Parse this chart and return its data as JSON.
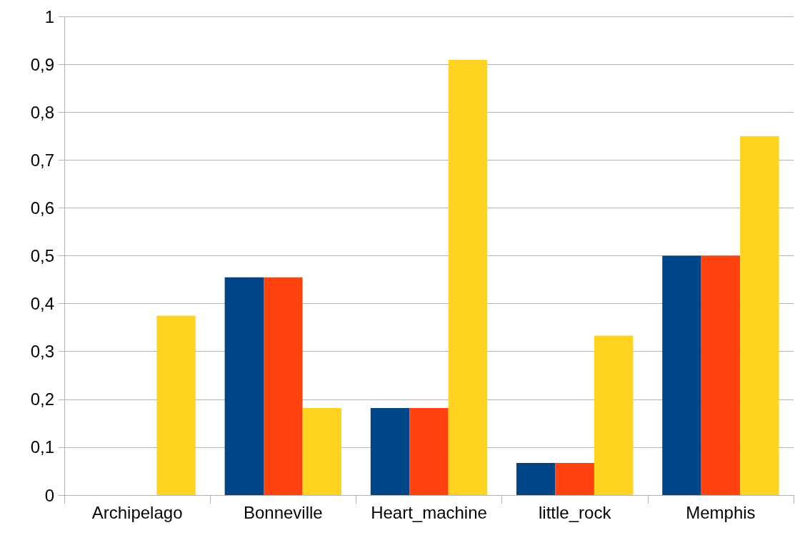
{
  "chart_data": {
    "type": "bar",
    "categories": [
      "Archipelago",
      "Bonneville",
      "Heart_machine",
      "little_rock",
      "Memphis"
    ],
    "series": [
      {
        "color": "#004586",
        "values": [
          0,
          0.455,
          0.182,
          0.067,
          0.5
        ]
      },
      {
        "color": "#ff420e",
        "values": [
          0,
          0.455,
          0.182,
          0.067,
          0.5
        ]
      },
      {
        "color": "#ffd320",
        "values": [
          0.375,
          0.182,
          0.909,
          0.333,
          0.75
        ]
      }
    ],
    "ylim": [
      0,
      1
    ],
    "yticks": [
      0,
      {
        "value": 0.1,
        "label": "0,1"
      },
      {
        "value": 0.2,
        "label": "0,2"
      },
      {
        "value": 0.3,
        "label": "0,3"
      },
      {
        "value": 0.4,
        "label": "0,4"
      },
      {
        "value": 0.5,
        "label": "0,5"
      },
      {
        "value": 0.6,
        "label": "0,6"
      },
      {
        "value": 0.7,
        "label": "0,7"
      },
      {
        "value": 0.8,
        "label": "0,8"
      },
      {
        "value": 0.9,
        "label": "0,9"
      },
      1
    ],
    "grid": "y"
  }
}
